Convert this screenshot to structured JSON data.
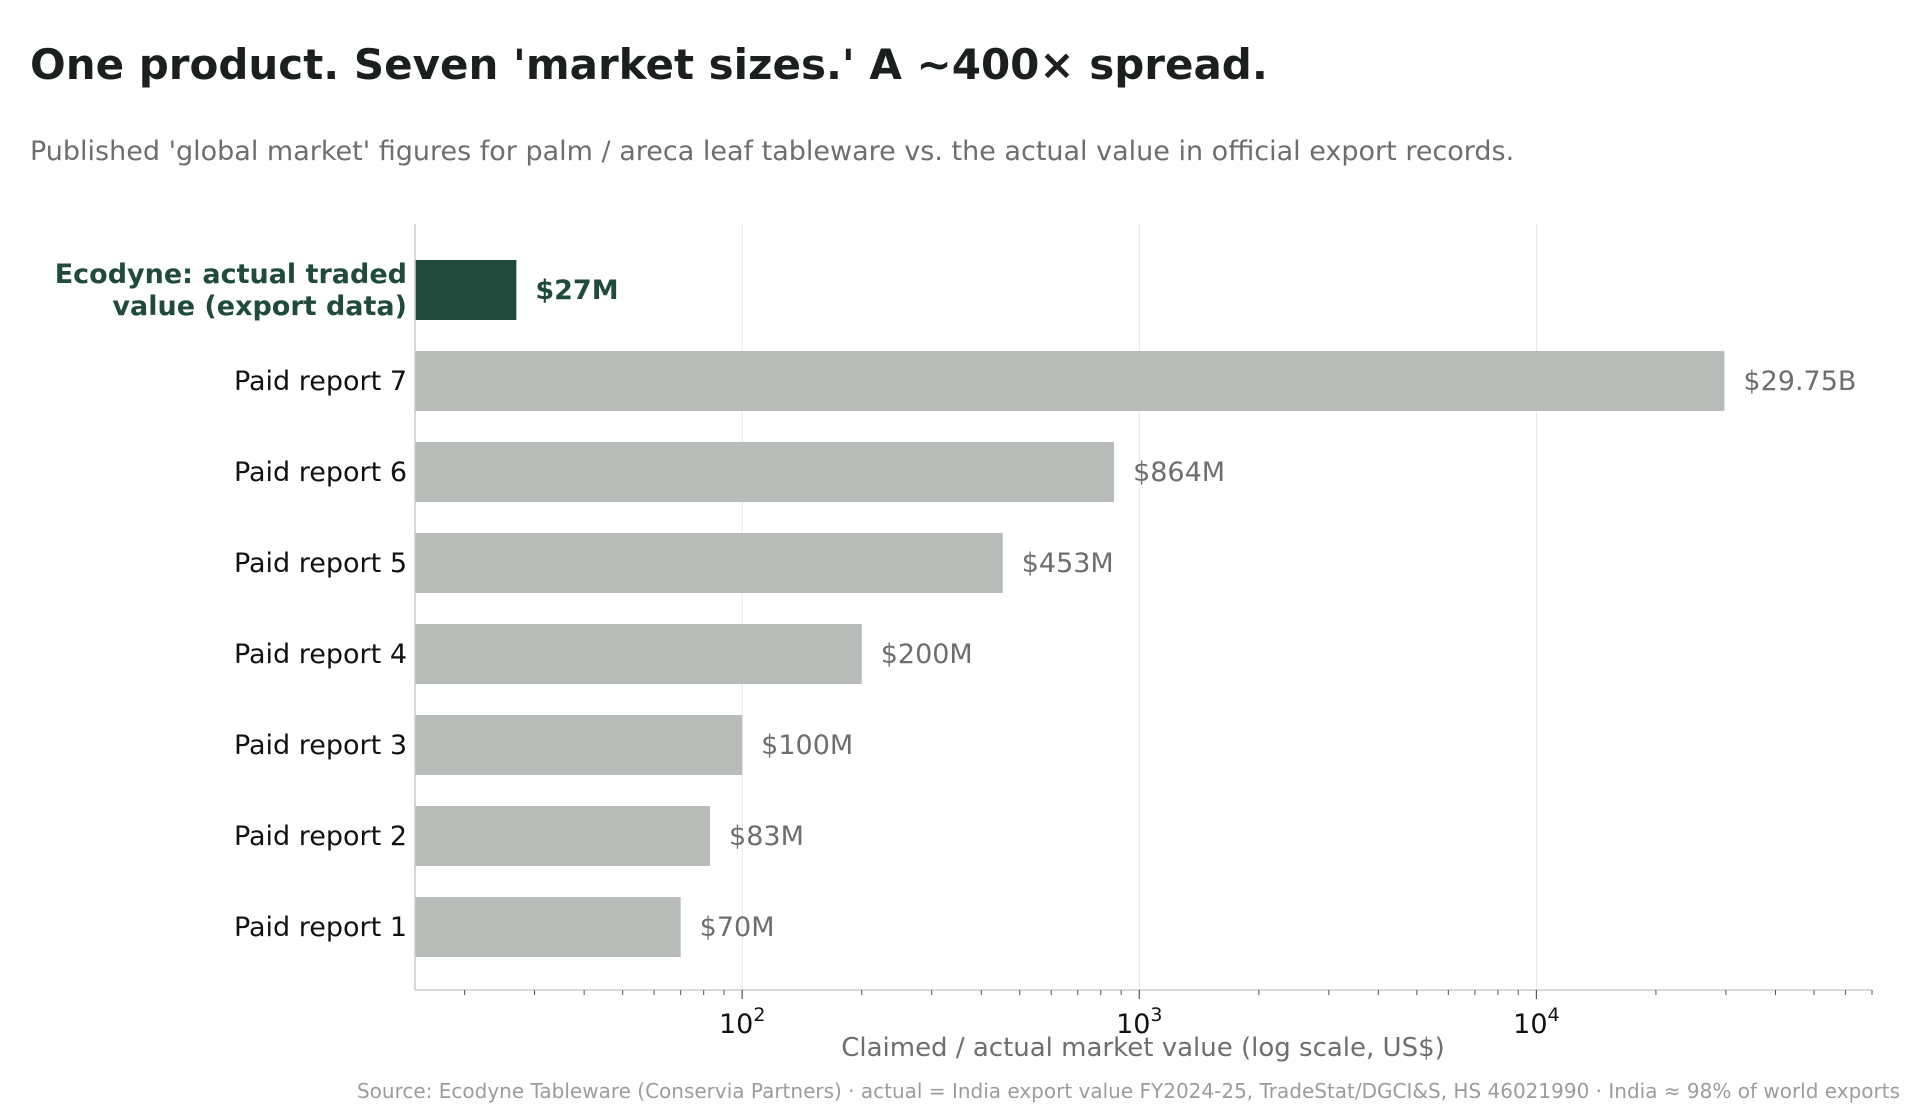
{
  "chart_data": {
    "type": "bar",
    "orientation": "horizontal",
    "title": "One product. Seven 'market sizes.' A ~400× spread.",
    "subtitle": "Published 'global market' figures for palm / areca leaf tableware vs. the actual value in official export records.",
    "xlabel": "Claimed / actual market value  (log scale, US$)",
    "ylabel": "",
    "xscale": "log",
    "xlim": [
      15,
      70000
    ],
    "x_unit": "US$ millions",
    "grid": "vertical-major",
    "legend": "none",
    "ticks": [
      {
        "value": 100,
        "base": "10",
        "exp": "2"
      },
      {
        "value": 1000,
        "base": "10",
        "exp": "3"
      },
      {
        "value": 10000,
        "base": "10",
        "exp": "4"
      }
    ],
    "categories": [
      "Ecodyne: actual traded value (export data)",
      "Paid report 7",
      "Paid report 6",
      "Paid report 5",
      "Paid report 4",
      "Paid report 3",
      "Paid report 2",
      "Paid report 1"
    ],
    "category_lines": [
      [
        "Ecodyne: actual traded",
        "value (export data)"
      ],
      [
        "Paid report 7"
      ],
      [
        "Paid report 6"
      ],
      [
        "Paid report 5"
      ],
      [
        "Paid report 4"
      ],
      [
        "Paid report 3"
      ],
      [
        "Paid report 2"
      ],
      [
        "Paid report 1"
      ]
    ],
    "values": [
      27,
      29750,
      864,
      453,
      200,
      100,
      83,
      70
    ],
    "value_labels": [
      "$27M",
      "$29.75B",
      "$864M",
      "$453M",
      "$200M",
      "$100M",
      "$83M",
      "$70M"
    ],
    "highlight_index": 0,
    "source": "Source: Ecodyne Tableware (Conservia Partners) · actual = India export value FY2024-25, TradeStat/DGCI&S, HS 46021990 · India ≈ 98% of world exports"
  },
  "colors": {
    "highlight": "#204b3c",
    "bar": "#b7bcb8",
    "value_label": "#6b6f6d",
    "category_label": "#111111",
    "grid": "#e6e6e6",
    "axis": "#cccccc",
    "source": "#9a9d9b"
  }
}
